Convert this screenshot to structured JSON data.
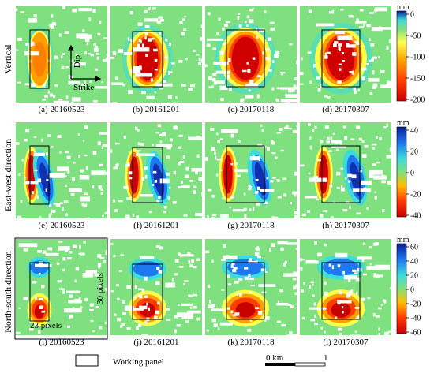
{
  "rows": [
    {
      "label": "Vertical",
      "panels": [
        {
          "caption": "(a) 20160523",
          "amp": 0.3
        },
        {
          "caption": "(b) 20161201",
          "amp": 0.85
        },
        {
          "caption": "(c) 20170118",
          "amp": 0.95
        },
        {
          "caption": "(d) 20170307",
          "amp": 1.0
        }
      ],
      "colorbar": {
        "unit": "mm",
        "ticks": [
          "0",
          "-50",
          "-100",
          "-150",
          "-200"
        ]
      }
    },
    {
      "label": "East-west direction",
      "panels": [
        {
          "caption": "(e) 20160523",
          "amp": 0.55
        },
        {
          "caption": "(f) 20161201",
          "amp": 0.85
        },
        {
          "caption": "(g) 20170118",
          "amp": 0.9
        },
        {
          "caption": "(h) 20170307",
          "amp": 0.95
        }
      ],
      "colorbar": {
        "unit": "mm",
        "ticks": [
          "40",
          "20",
          "0",
          "-20",
          "-40"
        ]
      }
    },
    {
      "label": "North-south direction",
      "panels": [
        {
          "caption": "(i) 20160523",
          "amp": 0.55
        },
        {
          "caption": "(j) 20161201",
          "amp": 0.75
        },
        {
          "caption": "(k) 20170118",
          "amp": 0.9
        },
        {
          "caption": "(l) 20170307",
          "amp": 0.95
        }
      ],
      "colorbar": {
        "unit": "mm",
        "ticks": [
          "60",
          "40",
          "20",
          "0",
          "-20",
          "-40",
          "-60"
        ]
      }
    }
  ],
  "annotations": {
    "dip": "Dip",
    "strike": "Strike",
    "pixels_30": "30 pixels",
    "pixels_23": "23 pixels"
  },
  "legend": {
    "working_panel": "Working panel"
  },
  "scalebar": {
    "start": "0 km",
    "end": "1"
  },
  "colors": {
    "background_field": "#7ee07e",
    "no_data": "#ffffff",
    "panel_outline": "#000000",
    "colormap": [
      "#c80000",
      "#ff3c00",
      "#ffa000",
      "#ffff50",
      "#7ee07e",
      "#3cdcdc",
      "#1e78f0",
      "#0a1e96"
    ]
  }
}
